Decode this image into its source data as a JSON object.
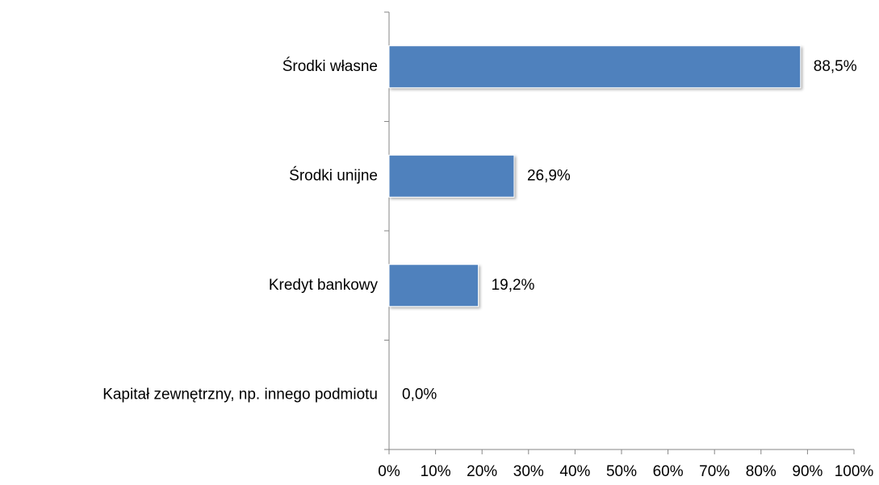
{
  "chart_data": {
    "type": "hbar",
    "categories": [
      "Środki własne",
      "Środki unijne",
      "Kredyt bankowy",
      "Kapitał zewnętrzny, np. innego podmiotu"
    ],
    "values": [
      88.5,
      26.9,
      19.2,
      0.0
    ],
    "value_labels": [
      "88,5%",
      "26,9%",
      "19,2%",
      "0,0%"
    ],
    "color": "#4f81bd",
    "xlim": [
      0,
      100
    ],
    "xticks": [
      {
        "value": 0,
        "label": "0%"
      },
      {
        "value": 10,
        "label": "10%"
      },
      {
        "value": 20,
        "label": "20%"
      },
      {
        "value": 30,
        "label": "30%"
      },
      {
        "value": 40,
        "label": "40%"
      },
      {
        "value": 50,
        "label": "50%"
      },
      {
        "value": 60,
        "label": "60%"
      },
      {
        "value": 70,
        "label": "70%"
      },
      {
        "value": 80,
        "label": "80%"
      },
      {
        "value": 90,
        "label": "90%"
      },
      {
        "value": 100,
        "label": "100%"
      }
    ],
    "grid": false
  }
}
